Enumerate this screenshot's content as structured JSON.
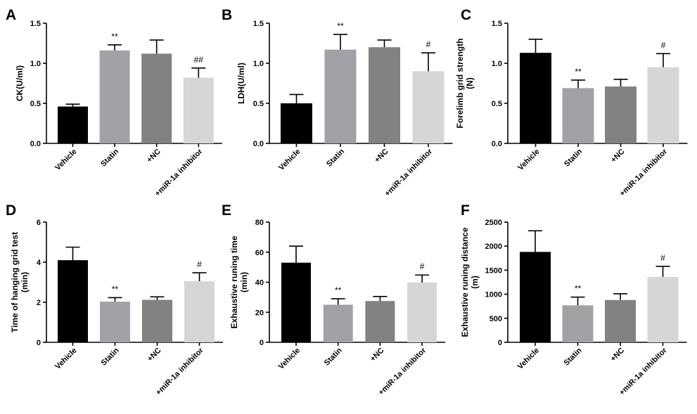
{
  "colors": {
    "Vehicle": "#000000",
    "Statin": "#a2a2a6",
    "+NC": "#828282",
    "+miR-1a inhibitor": "#d6d6d6"
  },
  "chart_data": [
    {
      "type": "bar",
      "panel": "A",
      "categories": [
        "Vehicle",
        "Statin",
        "+NC",
        "+miR-1a inhibitor"
      ],
      "values": [
        0.46,
        1.16,
        1.12,
        0.82
      ],
      "errors": [
        0.03,
        0.07,
        0.17,
        0.12
      ],
      "annotations": [
        "",
        "**",
        "",
        "##"
      ],
      "ylabel_lines": [
        "CK(U/ml)"
      ],
      "ylim": [
        0,
        1.5
      ],
      "yticks": [
        0.0,
        0.5,
        1.0,
        1.5
      ],
      "ytick_labels": [
        "0.0",
        "0.5",
        "1.0",
        "1.5"
      ]
    },
    {
      "type": "bar",
      "panel": "B",
      "categories": [
        "Vehicle",
        "Statin",
        "+NC",
        "+miR-1a inhibitor"
      ],
      "values": [
        0.5,
        1.17,
        1.2,
        0.9
      ],
      "errors": [
        0.11,
        0.19,
        0.09,
        0.23
      ],
      "annotations": [
        "",
        "**",
        "",
        "#"
      ],
      "ylabel_lines": [
        "LDH(U/ml)"
      ],
      "ylim": [
        0,
        1.5
      ],
      "yticks": [
        0.0,
        0.5,
        1.0,
        1.5
      ],
      "ytick_labels": [
        "0.0",
        "0.5",
        "1.0",
        "1.5"
      ]
    },
    {
      "type": "bar",
      "panel": "C",
      "categories": [
        "Vehicle",
        "Statin",
        "+NC",
        "+miR-1a inhibitor"
      ],
      "values": [
        1.13,
        0.69,
        0.71,
        0.95
      ],
      "errors": [
        0.17,
        0.1,
        0.09,
        0.17
      ],
      "annotations": [
        "",
        "**",
        "",
        "#"
      ],
      "ylabel_lines": [
        "Forelimb grid strength",
        "(N)"
      ],
      "ylim": [
        0,
        1.5
      ],
      "yticks": [
        0.0,
        0.5,
        1.0,
        1.5
      ],
      "ytick_labels": [
        "0.0",
        "0.5",
        "1.0",
        "1.5"
      ]
    },
    {
      "type": "bar",
      "panel": "D",
      "categories": [
        "Vehicle",
        "Statin",
        "+NC",
        "+miR-1a inhibitor"
      ],
      "values": [
        4.1,
        2.03,
        2.12,
        3.05
      ],
      "errors": [
        0.65,
        0.2,
        0.15,
        0.42
      ],
      "annotations": [
        "",
        "**",
        "",
        "#"
      ],
      "ylabel_lines": [
        "Time of hanging grid test",
        "(min)"
      ],
      "ylim": [
        0,
        6
      ],
      "yticks": [
        0,
        2,
        4,
        6
      ],
      "ytick_labels": [
        "0",
        "2",
        "4",
        "6"
      ]
    },
    {
      "type": "bar",
      "panel": "E",
      "categories": [
        "Vehicle",
        "Statin",
        "+NC",
        "+miR-1a inhibitor"
      ],
      "values": [
        53,
        25,
        27.5,
        39.8
      ],
      "errors": [
        11,
        4,
        3,
        5
      ],
      "annotations": [
        "",
        "**",
        "",
        "#"
      ],
      "ylabel_lines": [
        "Exhaustive runing time",
        "(min)"
      ],
      "ylim": [
        0,
        80
      ],
      "yticks": [
        0,
        20,
        40,
        60,
        80
      ],
      "ytick_labels": [
        "0",
        "20",
        "40",
        "60",
        "80"
      ]
    },
    {
      "type": "bar",
      "panel": "F",
      "categories": [
        "Vehicle",
        "Statin",
        "+NC",
        "+miR-1a inhibitor"
      ],
      "values": [
        1880,
        770,
        880,
        1360
      ],
      "errors": [
        440,
        170,
        130,
        220
      ],
      "annotations": [
        "",
        "**",
        "",
        "#"
      ],
      "ylabel_lines": [
        "Exhaustive runing distance",
        "(m)"
      ],
      "ylim": [
        0,
        2500
      ],
      "yticks": [
        0,
        500,
        1000,
        1500,
        2000,
        2500
      ],
      "ytick_labels": [
        "0",
        "500",
        "1000",
        "1500",
        "2000",
        "2500"
      ]
    }
  ]
}
